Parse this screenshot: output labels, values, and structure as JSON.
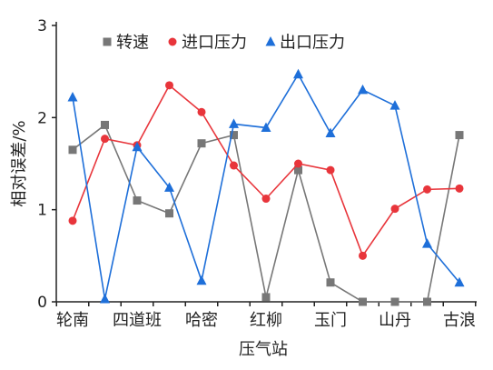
{
  "chart_data": {
    "type": "line",
    "title": "",
    "xlabel": "压气站",
    "ylabel": "相对误差/%",
    "ylim": [
      0,
      3
    ],
    "yticks": [
      0,
      1,
      2,
      3
    ],
    "grid": false,
    "legend_position": "top",
    "categories": [
      "轮南",
      "",
      "四道班",
      "",
      "哈密",
      "",
      "红柳",
      "",
      "玉门",
      "",
      "山丹",
      "",
      "古浪"
    ],
    "series": [
      {
        "name": "转速",
        "color": "#777777",
        "marker": "square",
        "values": [
          1.65,
          1.92,
          1.1,
          0.96,
          1.72,
          1.81,
          0.05,
          1.43,
          0.21,
          0.0,
          0.0,
          0.0,
          1.81
        ]
      },
      {
        "name": "进口压力",
        "color": "#e8353b",
        "marker": "circle",
        "values": [
          0.88,
          1.77,
          1.7,
          2.35,
          2.06,
          1.48,
          1.12,
          1.5,
          1.43,
          0.5,
          1.01,
          1.22,
          1.23
        ]
      },
      {
        "name": "出口压力",
        "color": "#1e6fd9",
        "marker": "triangle",
        "values": [
          2.22,
          0.03,
          1.68,
          1.24,
          0.23,
          1.93,
          1.89,
          2.47,
          1.83,
          2.3,
          2.13,
          0.63,
          0.21
        ]
      }
    ]
  }
}
